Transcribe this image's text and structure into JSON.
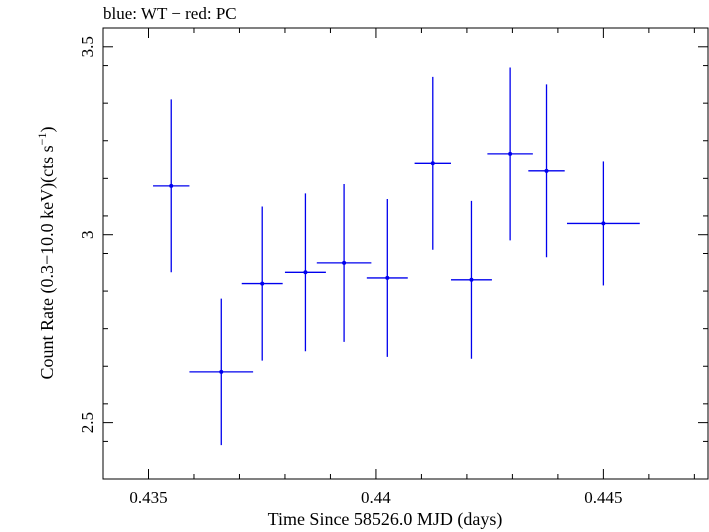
{
  "chart_data": {
    "type": "scatter",
    "title": "blue: WT − red: PC",
    "xlabel": "Time Since 58526.0 MJD (days)",
    "ylabel_main": "Count Rate (0.3−10.0 keV)(cts s",
    "ylabel_sup": "−1",
    "ylabel_end": ")",
    "xlim": [
      0.434,
      0.4473
    ],
    "ylim": [
      2.35,
      3.55
    ],
    "xticks": [
      0.435,
      0.44,
      0.445
    ],
    "xtick_labels": [
      "0.435",
      "0.44",
      "0.445"
    ],
    "yticks": [
      2.5,
      3,
      3.5
    ],
    "ytick_labels": [
      "2.5",
      "3",
      "3.5"
    ],
    "grid": false,
    "series_color": "#0000ee",
    "series": [
      {
        "x": [
          0.4355,
          0.4366,
          0.4375,
          0.43845,
          0.4393,
          0.44025,
          0.44125,
          0.4421,
          0.44295,
          0.44375,
          0.445
        ],
        "xerr": [
          0.0004,
          0.0007,
          0.00045,
          0.00045,
          0.0006,
          0.00045,
          0.0004,
          0.00045,
          0.0005,
          0.0004,
          0.0008
        ],
        "y": [
          3.13,
          2.635,
          2.87,
          2.9,
          2.925,
          2.885,
          3.19,
          2.88,
          3.215,
          3.17,
          3.03
        ],
        "yerr": [
          0.23,
          0.195,
          0.205,
          0.21,
          0.21,
          0.21,
          0.23,
          0.21,
          0.23,
          0.23,
          0.165
        ]
      }
    ]
  }
}
